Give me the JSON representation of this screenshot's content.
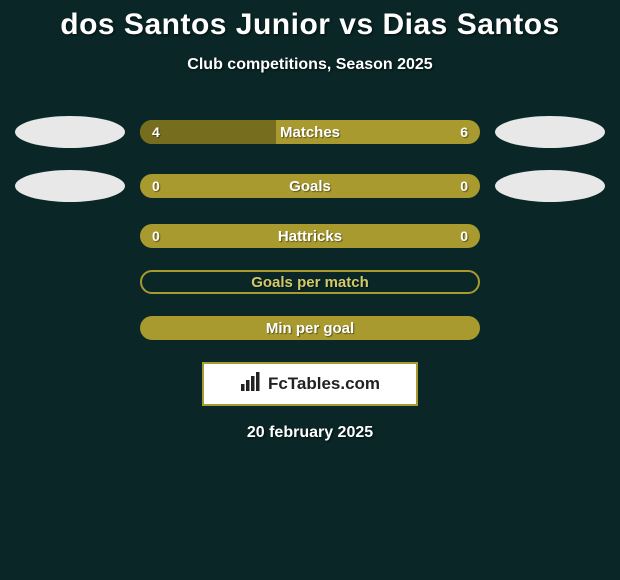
{
  "title": "dos Santos Junior vs Dias Santos",
  "subtitle": "Club competitions, Season 2025",
  "date": "20 february 2025",
  "badge_text": "FcTables.com",
  "colors": {
    "background": "#0a2626",
    "bar_full": "#a89a2e",
    "bar_left": "#776d1f",
    "ellipse": "#e8e8e8",
    "text": "#ffffff"
  },
  "rows": [
    {
      "label": "Matches",
      "left_value": "4",
      "right_value": "6",
      "left_num": 4,
      "right_num": 6,
      "show_left_logo": true,
      "show_right_logo": true,
      "left_width_pct": 40,
      "pill_only": false
    },
    {
      "label": "Goals",
      "left_value": "0",
      "right_value": "0",
      "left_num": 0,
      "right_num": 0,
      "show_left_logo": true,
      "show_right_logo": true,
      "left_indent": true,
      "left_width_pct": 0,
      "pill_only": false
    },
    {
      "label": "Hattricks",
      "left_value": "0",
      "right_value": "0",
      "left_num": 0,
      "right_num": 0,
      "show_left_logo": false,
      "show_right_logo": false,
      "left_width_pct": 0,
      "pill_only": false
    },
    {
      "label": "Goals per match",
      "left_value": "",
      "right_value": "",
      "show_left_logo": false,
      "show_right_logo": false,
      "pill_only": true
    },
    {
      "label": "Min per goal",
      "left_value": "",
      "right_value": "",
      "show_left_logo": false,
      "show_right_logo": false,
      "pill_only": false,
      "left_width_pct": 0
    }
  ]
}
